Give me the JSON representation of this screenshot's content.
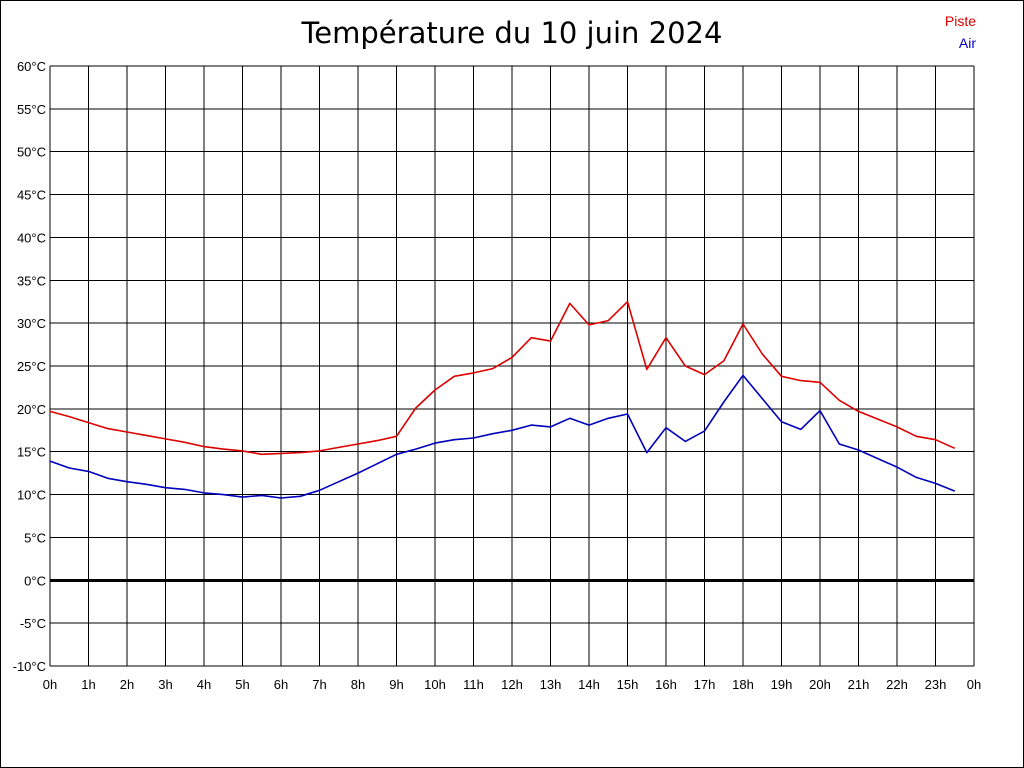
{
  "colors": {
    "background": "#ffffff",
    "grid": "#000000",
    "zero_line": "#000000",
    "piste": "#dd0000",
    "air": "#0000bb"
  },
  "chart_data": {
    "type": "line",
    "title": "Température du 10 juin 2024",
    "xlabel": "",
    "ylabel": "",
    "grid": true,
    "legend_position": "top-right",
    "x_tick_labels": [
      "0h",
      "1h",
      "2h",
      "3h",
      "4h",
      "5h",
      "6h",
      "7h",
      "8h",
      "9h",
      "10h",
      "11h",
      "12h",
      "13h",
      "14h",
      "15h",
      "16h",
      "17h",
      "18h",
      "19h",
      "20h",
      "21h",
      "22h",
      "23h",
      "0h"
    ],
    "y_tick_labels": [
      "60°C",
      "55°C",
      "50°C",
      "45°C",
      "40°C",
      "35°C",
      "30°C",
      "25°C",
      "20°C",
      "15°C",
      "10°C",
      "5°C",
      "0°C",
      "-5°C",
      "-10°C"
    ],
    "xlim": [
      0,
      24
    ],
    "ylim": [
      -10,
      60
    ],
    "x_hours": [
      0,
      0.5,
      1,
      1.5,
      2,
      2.5,
      3,
      3.5,
      4,
      4.5,
      5,
      5.5,
      6,
      6.5,
      7,
      7.5,
      8,
      8.5,
      9,
      9.5,
      10,
      10.5,
      11,
      11.5,
      12,
      12.5,
      13,
      13.5,
      14,
      14.5,
      15,
      15.5,
      16,
      16.5,
      17,
      17.5,
      18,
      18.5,
      19,
      19.5,
      20,
      20.5,
      21,
      21.5,
      22,
      22.5,
      23,
      23.5
    ],
    "series": [
      {
        "name": "Piste",
        "values": [
          19.7,
          19.1,
          18.4,
          17.7,
          17.3,
          16.9,
          16.5,
          16.1,
          15.6,
          15.3,
          15.1,
          14.7,
          14.8,
          14.9,
          15.1,
          15.5,
          15.9,
          16.3,
          16.8,
          20.1,
          22.2,
          23.8,
          24.2,
          24.7,
          26.0,
          28.3,
          27.9,
          32.3,
          29.8,
          30.3,
          32.5,
          24.6,
          28.3,
          25.0,
          24.0,
          25.6,
          29.9,
          26.4,
          23.8,
          23.3,
          23.1,
          21.0,
          19.7,
          18.8,
          17.9,
          16.8,
          16.4,
          15.4
        ]
      },
      {
        "name": "Air",
        "values": [
          13.9,
          13.1,
          12.7,
          11.9,
          11.5,
          11.2,
          10.8,
          10.6,
          10.2,
          10.0,
          9.7,
          9.9,
          9.6,
          9.8,
          10.5,
          11.5,
          12.5,
          13.6,
          14.7,
          15.3,
          16.0,
          16.4,
          16.6,
          17.1,
          17.5,
          18.1,
          17.9,
          18.9,
          18.1,
          18.9,
          19.4,
          14.9,
          17.8,
          16.2,
          17.4,
          20.8,
          23.9,
          21.2,
          18.5,
          17.6,
          19.8,
          15.9,
          15.2,
          14.2,
          13.2,
          12.0,
          11.3,
          10.4
        ]
      }
    ]
  }
}
